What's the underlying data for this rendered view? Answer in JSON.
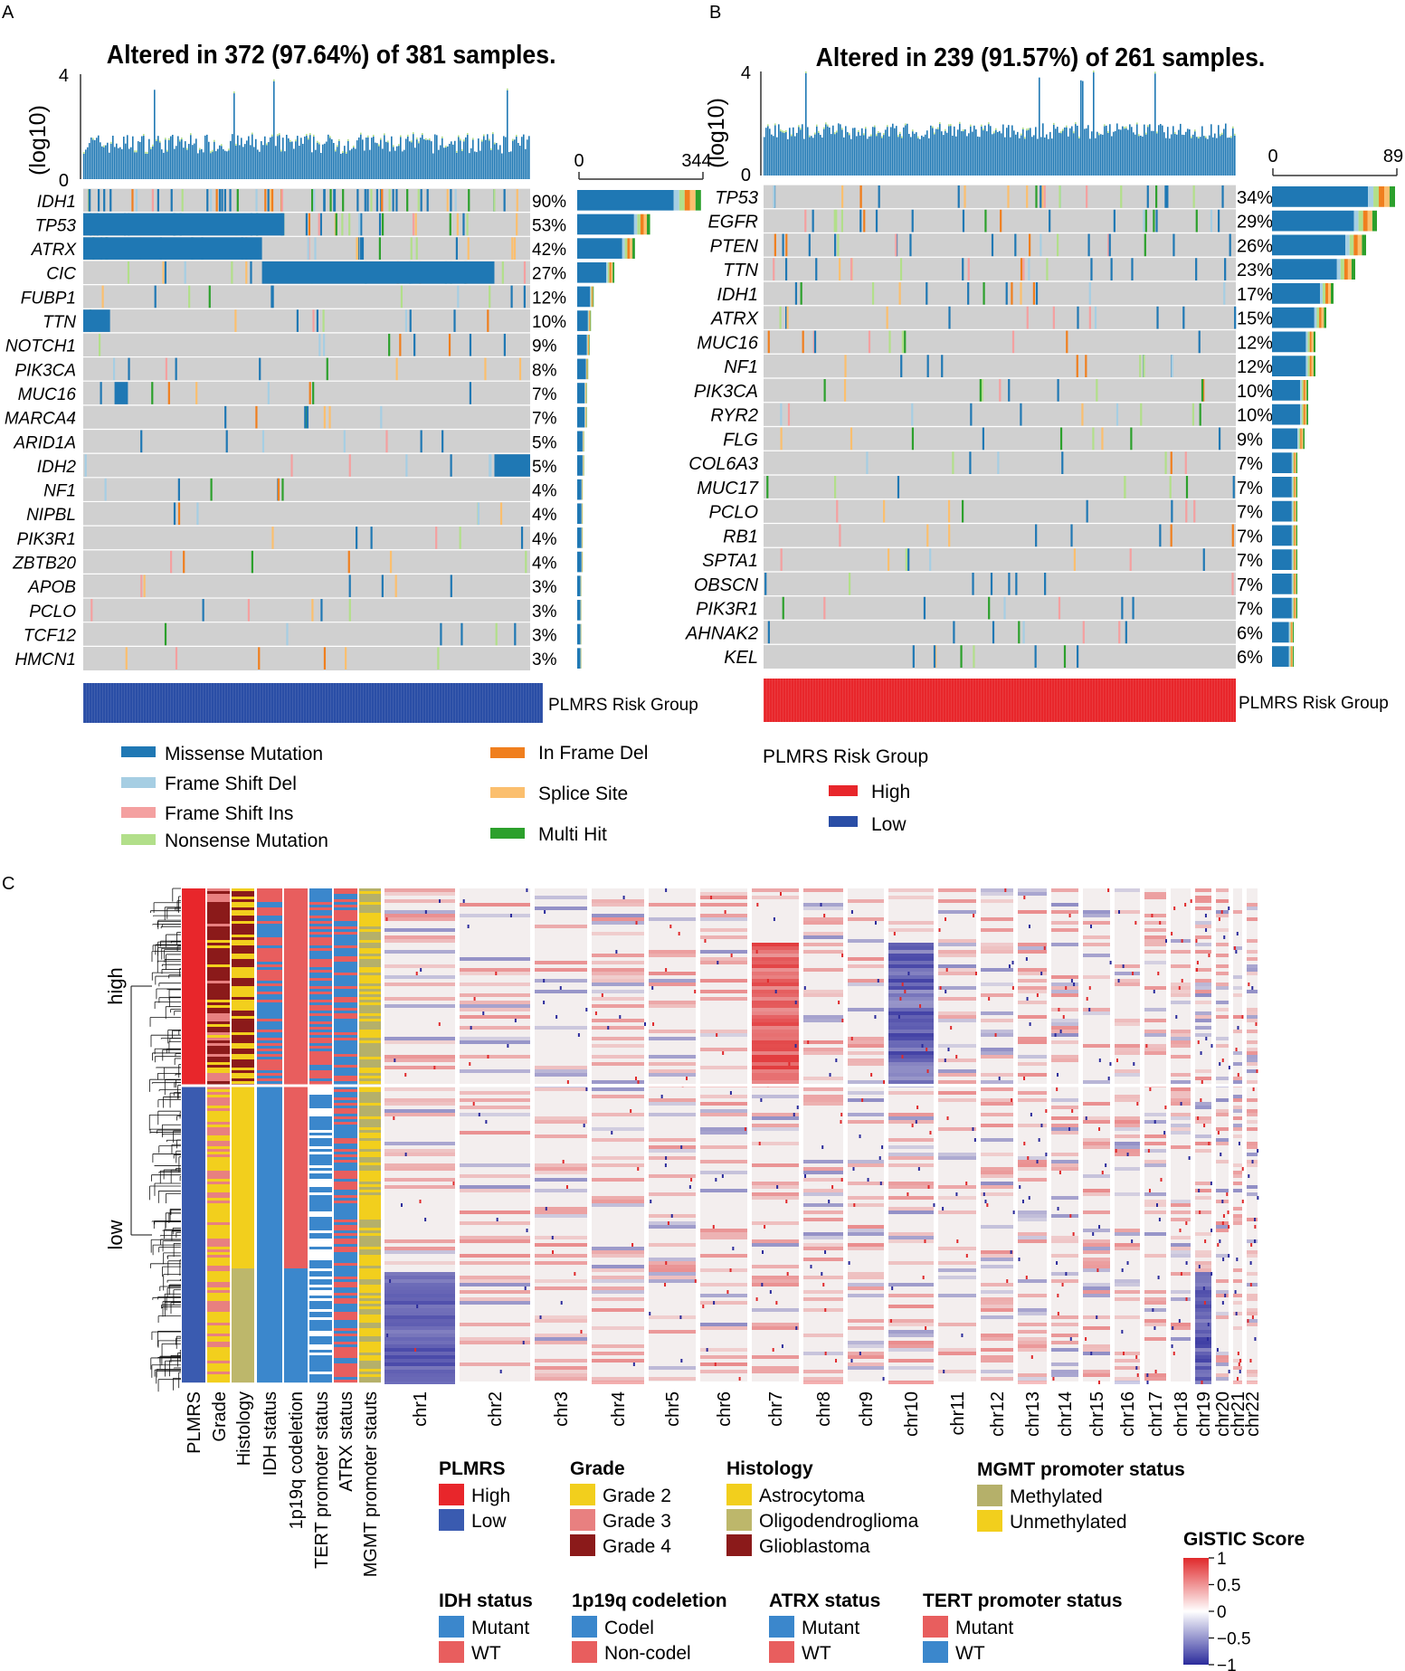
{
  "panel_labels": {
    "a": "A",
    "b": "B",
    "c": "C"
  },
  "colors": {
    "missense": "#1f78b4",
    "frame_shift_del": "#a6cee3",
    "frame_shift_ins": "#f4a0a0",
    "nonsense": "#b2df8a",
    "in_frame_del": "#f07f1e",
    "splice_site": "#fbbf6e",
    "multi_hit": "#2ca02c",
    "background": "#d0d0d0",
    "high": "#e8262b",
    "low": "#2a4ea6",
    "gistic_high": "#e0292b",
    "gistic_low": "#2b2b9c"
  },
  "legend_mut": {
    "items": [
      "Missense Mutation",
      "Frame Shift Del",
      "Frame Shift Ins",
      "Nonsense Mutation",
      "In Frame Del",
      "Splice Site",
      "Multi Hit"
    ],
    "risk_title": "PLMRS Risk Group",
    "risk_items": [
      "High",
      "Low"
    ]
  },
  "chart_data": [
    {
      "type": "oncoplot",
      "panel": "A",
      "title": "Altered in 372 (97.64%) of 381 samples.",
      "tmb_ylabel": "(log10)",
      "tmb_yticks": [
        "4",
        "0"
      ],
      "bar_axis": [
        "0",
        "344"
      ],
      "genes": [
        "IDH1",
        "TP53",
        "ATRX",
        "CIC",
        "FUBP1",
        "TTN",
        "NOTCH1",
        "PIK3CA",
        "MUC16",
        "MARCA4",
        "ARID1A",
        "IDH2",
        "NF1",
        "NIPBL",
        "PIK3R1",
        "ZBTB20",
        "APOB",
        "PCLO",
        "TCF12",
        "HMCN1"
      ],
      "percent_labels": [
        "90%",
        "53%",
        "42%",
        "27%",
        "12%",
        "10%",
        "9%",
        "8%",
        "7%",
        "7%",
        "5%",
        "5%",
        "4%",
        "4%",
        "4%",
        "4%",
        "3%",
        "3%",
        "3%",
        "3%"
      ],
      "percent_values": [
        90,
        53,
        42,
        27,
        12,
        10,
        9,
        8,
        7,
        7,
        5,
        5,
        4,
        4,
        4,
        4,
        3,
        3,
        3,
        3
      ],
      "risk_label": "PLMRS Risk Group",
      "risk_group": "Low"
    },
    {
      "type": "oncoplot",
      "panel": "B",
      "title": "Altered in 239 (91.57%) of 261 samples.",
      "tmb_ylabel": "(log10)",
      "tmb_yticks": [
        "4",
        "0"
      ],
      "bar_axis": [
        "0",
        "89"
      ],
      "genes": [
        "TP53",
        "EGFR",
        "PTEN",
        "TTN",
        "IDH1",
        "ATRX",
        "MUC16",
        "NF1",
        "PIK3CA",
        "RYR2",
        "FLG",
        "COL6A3",
        "MUC17",
        "PCLO",
        "RB1",
        "SPTA1",
        "OBSCN",
        "PIK3R1",
        "AHNAK2",
        "KEL"
      ],
      "percent_labels": [
        "34%",
        "29%",
        "26%",
        "23%",
        "17%",
        "15%",
        "12%",
        "12%",
        "10%",
        "10%",
        "9%",
        "7%",
        "7%",
        "7%",
        "7%",
        "7%",
        "7%",
        "7%",
        "6%",
        "6%"
      ],
      "percent_values": [
        34,
        29,
        26,
        23,
        17,
        15,
        12,
        12,
        10,
        10,
        9,
        7,
        7,
        7,
        7,
        7,
        7,
        7,
        6,
        6
      ],
      "risk_label": "PLMRS Risk Group",
      "risk_group": "High"
    },
    {
      "type": "heatmap",
      "panel": "C",
      "row_groups": [
        "high",
        "low"
      ],
      "annotation_columns": [
        "PLMRS",
        "Grade",
        "Histology",
        "IDH status",
        "1p19q codeletion",
        "TERT promoter status",
        "ATRX status",
        "MGMT promoter stauts"
      ],
      "chromosomes": [
        "chr1",
        "chr2",
        "chr3",
        "chr4",
        "chr5",
        "chr6",
        "chr7",
        "chr8",
        "chr9",
        "chr10",
        "chr11",
        "chr12",
        "chr13",
        "chr14",
        "chr15",
        "chr16",
        "chr17",
        "chr18",
        "chr19",
        "chr20",
        "chr21",
        "chr22"
      ],
      "colorbar_title": "GISTIC Score",
      "colorbar_ticks": [
        "1",
        "0.5",
        "0",
        "−0.5",
        "−1"
      ],
      "colorbar_values": [
        1,
        0.5,
        0,
        -0.5,
        -1
      ],
      "legends": [
        {
          "title": "PLMRS",
          "items": [
            {
              "label": "High",
              "color": "#e8262b"
            },
            {
              "label": "Low",
              "color": "#3a5bb0"
            }
          ]
        },
        {
          "title": "Grade",
          "items": [
            {
              "label": "Grade 2",
              "color": "#f2cf1d"
            },
            {
              "label": "Grade 3",
              "color": "#e88080"
            },
            {
              "label": "Grade 4",
              "color": "#8b1a1a"
            }
          ]
        },
        {
          "title": "Histology",
          "items": [
            {
              "label": "Astrocytoma",
              "color": "#f2cf1d"
            },
            {
              "label": "Oligodendroglioma",
              "color": "#bdb76b"
            },
            {
              "label": "Glioblastoma",
              "color": "#8b1a1a"
            }
          ]
        },
        {
          "title": "MGMT promoter status",
          "items": [
            {
              "label": "Methylated",
              "color": "#b5b06a"
            },
            {
              "label": "Unmethylated",
              "color": "#f2cf1d"
            }
          ]
        },
        {
          "title": "IDH status",
          "items": [
            {
              "label": "Mutant",
              "color": "#3b87cc"
            },
            {
              "label": "WT",
              "color": "#e85e5e"
            }
          ]
        },
        {
          "title": "1p19q codeletion",
          "items": [
            {
              "label": "Codel",
              "color": "#3b87cc"
            },
            {
              "label": "Non-codel",
              "color": "#e85e5e"
            }
          ]
        },
        {
          "title": "ATRX status",
          "items": [
            {
              "label": "Mutant",
              "color": "#3b87cc"
            },
            {
              "label": "WT",
              "color": "#e85e5e"
            }
          ]
        },
        {
          "title": "TERT promoter status",
          "items": [
            {
              "label": "Mutant",
              "color": "#e85e5e"
            },
            {
              "label": "WT",
              "color": "#3b87cc"
            }
          ]
        }
      ]
    }
  ]
}
